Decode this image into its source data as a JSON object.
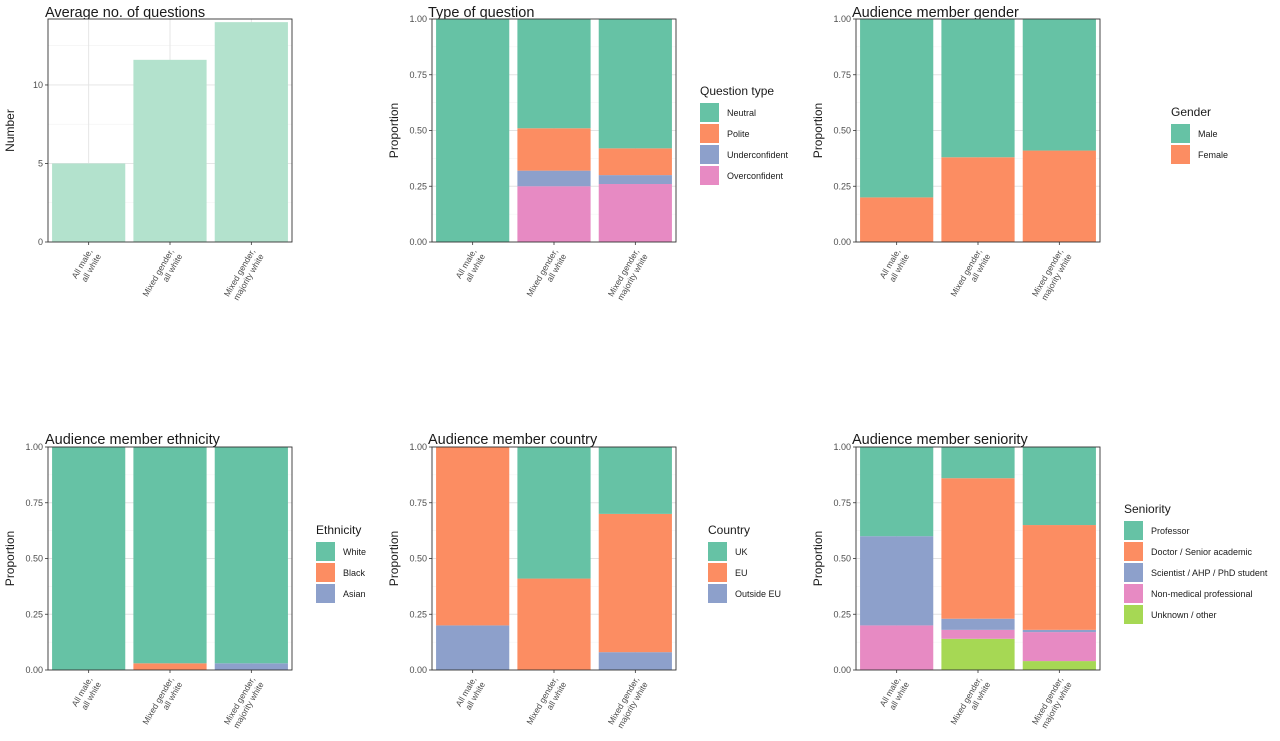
{
  "chart_data": [
    {
      "id": "avg_questions",
      "type": "bar",
      "title": "Average no. of questions",
      "ylabel": "Number",
      "categories": [
        [
          "All male,",
          "all white"
        ],
        [
          "Mixed gender,",
          "all white"
        ],
        [
          "Mixed gender,",
          "majority white"
        ]
      ],
      "ylim": [
        0,
        14.2
      ],
      "yticks": [
        0,
        5,
        10
      ],
      "ytick_labels": [
        "0",
        "5",
        "10"
      ],
      "grid": true,
      "values": [
        5,
        11.6,
        14
      ],
      "bar_color": "#b3e2cd"
    },
    {
      "id": "question_type",
      "type": "stacked-bar",
      "title": "Type of question",
      "ylabel": "Proportion",
      "categories": [
        [
          "All male,",
          "all white"
        ],
        [
          "Mixed gender,",
          "all white"
        ],
        [
          "Mixed gender,",
          "majority white"
        ]
      ],
      "ylim": [
        0,
        1
      ],
      "yticks": [
        0,
        0.25,
        0.5,
        0.75,
        1
      ],
      "ytick_labels": [
        "0.00",
        "0.25",
        "0.50",
        "0.75",
        "1.00"
      ],
      "grid": true,
      "legend": {
        "title": "Question type",
        "placement": "right"
      },
      "series": [
        {
          "name": "Neutral",
          "color": "#66c2a5",
          "values": [
            1.0,
            0.49,
            0.58
          ]
        },
        {
          "name": "Polite",
          "color": "#fc8d62",
          "values": [
            0,
            0.19,
            0.12
          ]
        },
        {
          "name": "Underconfident",
          "color": "#8da0cb",
          "values": [
            0,
            0.07,
            0.04
          ]
        },
        {
          "name": "Overconfident",
          "color": "#e78ac3",
          "values": [
            0,
            0.25,
            0.26
          ]
        }
      ]
    },
    {
      "id": "gender",
      "type": "stacked-bar",
      "title": "Audience member gender",
      "ylabel": "Proportion",
      "categories": [
        [
          "All male,",
          "all white"
        ],
        [
          "Mixed gender,",
          "all white"
        ],
        [
          "Mixed gender,",
          "majority white"
        ]
      ],
      "ylim": [
        0,
        1
      ],
      "yticks": [
        0,
        0.25,
        0.5,
        0.75,
        1
      ],
      "ytick_labels": [
        "0.00",
        "0.25",
        "0.50",
        "0.75",
        "1.00"
      ],
      "grid": true,
      "legend": {
        "title": "Gender",
        "placement": "right"
      },
      "series": [
        {
          "name": "Male",
          "color": "#66c2a5",
          "values": [
            0.8,
            0.62,
            0.59
          ]
        },
        {
          "name": "Female",
          "color": "#fc8d62",
          "values": [
            0.2,
            0.38,
            0.41
          ]
        }
      ]
    },
    {
      "id": "ethnicity",
      "type": "stacked-bar",
      "title": "Audience member ethnicity",
      "ylabel": "Proportion",
      "categories": [
        [
          "All male,",
          "all white"
        ],
        [
          "Mixed gender,",
          "all white"
        ],
        [
          "Mixed gender,",
          "majority white"
        ]
      ],
      "ylim": [
        0,
        1
      ],
      "yticks": [
        0,
        0.25,
        0.5,
        0.75,
        1
      ],
      "ytick_labels": [
        "0.00",
        "0.25",
        "0.50",
        "0.75",
        "1.00"
      ],
      "grid": true,
      "legend": {
        "title": "Ethnicity",
        "placement": "right"
      },
      "series": [
        {
          "name": "White",
          "color": "#66c2a5",
          "values": [
            1.0,
            0.97,
            0.97
          ]
        },
        {
          "name": "Black",
          "color": "#fc8d62",
          "values": [
            0,
            0.03,
            0.0
          ]
        },
        {
          "name": "Asian",
          "color": "#8da0cb",
          "values": [
            0,
            0,
            0.03
          ]
        }
      ]
    },
    {
      "id": "country",
      "type": "stacked-bar",
      "title": "Audience member country",
      "ylabel": "Proportion",
      "categories": [
        [
          "All male,",
          "all white"
        ],
        [
          "Mixed gender,",
          "all white"
        ],
        [
          "Mixed gender,",
          "majority white"
        ]
      ],
      "ylim": [
        0,
        1
      ],
      "yticks": [
        0,
        0.25,
        0.5,
        0.75,
        1
      ],
      "ytick_labels": [
        "0.00",
        "0.25",
        "0.50",
        "0.75",
        "1.00"
      ],
      "grid": true,
      "legend": {
        "title": "Country",
        "placement": "right"
      },
      "series": [
        {
          "name": "UK",
          "color": "#66c2a5",
          "values": [
            0,
            0.59,
            0.3
          ]
        },
        {
          "name": "EU",
          "color": "#fc8d62",
          "values": [
            0.8,
            0.41,
            0.62
          ]
        },
        {
          "name": "Outside EU",
          "color": "#8da0cb",
          "values": [
            0.2,
            0,
            0.08
          ]
        }
      ]
    },
    {
      "id": "seniority",
      "type": "stacked-bar",
      "title": "Audience member seniority",
      "ylabel": "Proportion",
      "categories": [
        [
          "All male,",
          "all white"
        ],
        [
          "Mixed gender,",
          "all white"
        ],
        [
          "Mixed gender,",
          "majority white"
        ]
      ],
      "ylim": [
        0,
        1
      ],
      "yticks": [
        0,
        0.25,
        0.5,
        0.75,
        1
      ],
      "ytick_labels": [
        "0.00",
        "0.25",
        "0.50",
        "0.75",
        "1.00"
      ],
      "grid": true,
      "legend": {
        "title": "Seniority",
        "placement": "right"
      },
      "series": [
        {
          "name": "Professor",
          "color": "#66c2a5",
          "values": [
            0.4,
            0.14,
            0.35
          ]
        },
        {
          "name": "Doctor / Senior academic",
          "color": "#fc8d62",
          "values": [
            0,
            0.63,
            0.47
          ]
        },
        {
          "name": "Scientist / AHP / PhD student",
          "color": "#8da0cb",
          "values": [
            0.4,
            0.05,
            0.01
          ]
        },
        {
          "name": "Non-medical professional",
          "color": "#e78ac3",
          "values": [
            0.2,
            0.04,
            0.13
          ]
        },
        {
          "name": "Unknown / other",
          "color": "#a6d854",
          "values": [
            0,
            0.14,
            0.04
          ]
        }
      ]
    }
  ]
}
